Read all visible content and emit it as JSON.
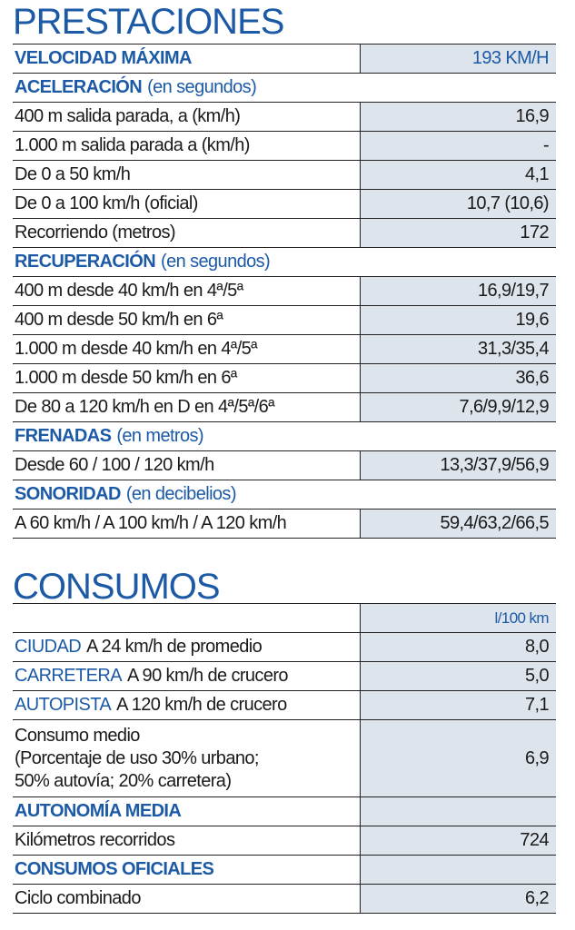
{
  "prestaciones": {
    "title": "PRESTACIONES",
    "velocidad": {
      "label": "VELOCIDAD MÁXIMA",
      "value": "193 KM/H"
    },
    "groups": [
      {
        "title": "ACELERACIÓN",
        "note": "(en segundos)",
        "rows": [
          [
            "400 m salida parada, a (km/h)",
            "16,9"
          ],
          [
            "1.000 m salida parada a (km/h)",
            "-"
          ],
          [
            "De 0 a 50 km/h",
            "4,1"
          ],
          [
            "De 0 a 100 km/h (oficial)",
            "10,7 (10,6)"
          ],
          [
            "Recorriendo (metros)",
            "172"
          ]
        ]
      },
      {
        "title": "RECUPERACIÓN",
        "note": "(en segundos)",
        "rows": [
          [
            "400 m desde 40 km/h en 4ª/5ª",
            "16,9/19,7"
          ],
          [
            "400 m desde 50 km/h en 6ª",
            "19,6"
          ],
          [
            "1.000 m desde 40 km/h en 4ª/5ª",
            "31,3/35,4"
          ],
          [
            "1.000 m desde 50 km/h en 6ª",
            "36,6"
          ],
          [
            "De 80 a 120 km/h en D en 4ª/5ª/6ª",
            "7,6/9,9/12,9"
          ]
        ]
      },
      {
        "title": "FRENADAS",
        "note": "(en metros)",
        "rows": [
          [
            "Desde 60 / 100 / 120 km/h",
            "13,3/37,9/56,9"
          ]
        ]
      },
      {
        "title": "SONORIDAD",
        "note": "(en decibelios)",
        "rows": [
          [
            "A 60 km/h / A 100 km/h / A 120 km/h",
            "59,4/63,2/66,5"
          ]
        ]
      }
    ]
  },
  "consumos": {
    "title": "CONSUMOS",
    "unit": "l/100 km",
    "rows": [
      {
        "key": "CIUDAD",
        "text": "A 24 km/h de promedio",
        "value": "8,0"
      },
      {
        "key": "CARRETERA",
        "text": "A 90 km/h de crucero",
        "value": "5,0"
      },
      {
        "key": "AUTOPISTA",
        "text": "A 120 km/h de crucero",
        "value": "7,1"
      }
    ],
    "medio": {
      "lines": [
        "Consumo medio",
        "(Porcentaje de uso 30% urbano;",
        "50% autovía; 20% carretera)"
      ],
      "value": "6,9"
    },
    "groups": [
      {
        "title": "AUTONOMÍA MEDIA",
        "rows": [
          [
            "Kilómetros recorridos",
            "724"
          ]
        ]
      },
      {
        "title": "CONSUMOS OFICIALES",
        "rows": [
          [
            "Ciclo combinado",
            "6,2"
          ]
        ]
      }
    ]
  }
}
